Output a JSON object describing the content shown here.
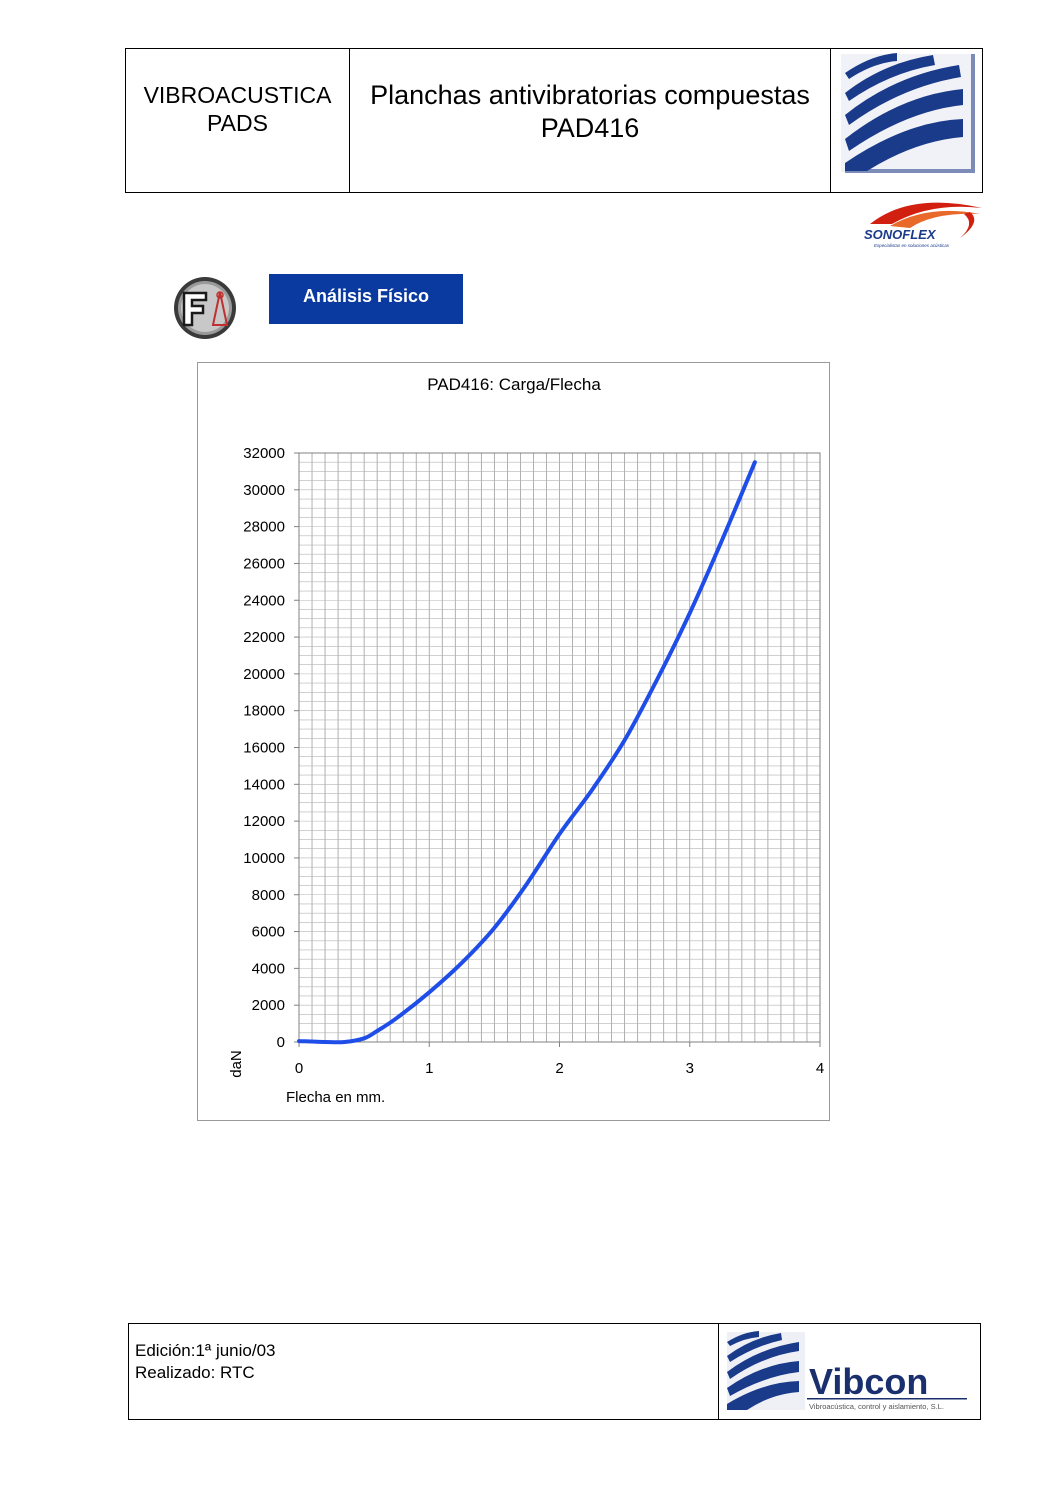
{
  "header": {
    "left_line1": "VIBROACUSTICA",
    "left_line2": "PADS",
    "title_line1": "Planchas antivibratorias compuestas",
    "title_line2": "PAD416"
  },
  "logos": {
    "sonoflex_name": "SONOFLEX",
    "sonoflex_tagline": "Especialistas en soluciones acústicas",
    "vibcon_name": "Vibcon",
    "vibcon_tagline": "Vibroacústica, control y aislamiento, S.L.",
    "accent_blue": "#0a3aa0",
    "logo_blue": "#1a3a8a",
    "sonoflex_red": "#d22010"
  },
  "section": {
    "icon": "fa-physical-analysis-icon",
    "label": "Análisis Físico"
  },
  "chart_data": {
    "type": "line",
    "title": "PAD416: Carga/Flecha",
    "xlabel": "Flecha en mm.",
    "ylabel": "daN",
    "xlim": [
      0,
      4
    ],
    "ylim": [
      0,
      32000
    ],
    "x_ticks": [
      0,
      1,
      2,
      3,
      4
    ],
    "y_ticks": [
      0,
      2000,
      4000,
      6000,
      8000,
      10000,
      12000,
      14000,
      16000,
      18000,
      20000,
      22000,
      24000,
      26000,
      28000,
      30000,
      32000
    ],
    "grid": true,
    "line_color": "#1f4de8",
    "series": [
      {
        "x": [
          0,
          0.2,
          0.35,
          0.5,
          0.6,
          0.75,
          1.0,
          1.25,
          1.5,
          1.75,
          2.0,
          2.25,
          2.5,
          2.75,
          3.0,
          3.25,
          3.5
        ],
        "y": [
          50,
          0,
          0,
          200,
          600,
          1300,
          2700,
          4300,
          6200,
          8600,
          11300,
          13700,
          16400,
          19700,
          23300,
          27300,
          31500
        ]
      }
    ]
  },
  "footer": {
    "edition": "Edición:1ª junio/03",
    "author": "Realizado: RTC"
  }
}
